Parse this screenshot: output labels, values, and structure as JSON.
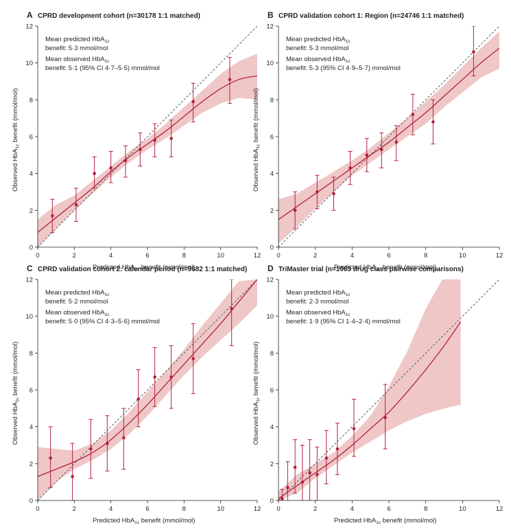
{
  "figure": {
    "x_axis_label_prefix": "Predicted HbA",
    "x_axis_label_sub": "1c",
    "x_axis_label_suffix": " benefit (mmol/mol)",
    "y_axis_label_prefix": "Observed HbA",
    "y_axis_label_sub": "1c",
    "y_axis_label_suffix": " benefit (mmol/mol)",
    "colors": {
      "fit": "#b21f3f",
      "band": "#e9b4b4",
      "reference": "#555b63",
      "axis": "#231f20"
    }
  },
  "chart_data": [
    {
      "type": "scatter",
      "letter": "A",
      "title": "CPRD development cohort (n=30178 1:1 matched)",
      "annotation": {
        "pred_line1_prefix": "Mean predicted HbA",
        "pred_line1_sub": "1c",
        "pred_line2": "benefit: 5·3 mmol/mol",
        "obs_line1_prefix": "Mean observed HbA",
        "obs_line1_sub": "1c",
        "obs_line2": "benefit: 5·1 (95% CI 4·7–5·5) mmol/mol"
      },
      "xlim": [
        0,
        12
      ],
      "ylim": [
        0,
        12
      ],
      "xticks": [
        0,
        2,
        4,
        6,
        8,
        10,
        12
      ],
      "yticks": [
        0,
        2,
        4,
        6,
        8,
        10,
        12
      ],
      "reference_line": [
        [
          0,
          0
        ],
        [
          12,
          12
        ]
      ],
      "points": [
        {
          "x": 0.8,
          "y": 1.7,
          "lo": 0.8,
          "hi": 2.6
        },
        {
          "x": 2.1,
          "y": 2.3,
          "lo": 1.4,
          "hi": 3.2
        },
        {
          "x": 3.1,
          "y": 4.0,
          "lo": 3.2,
          "hi": 4.9
        },
        {
          "x": 4.0,
          "y": 4.3,
          "lo": 3.5,
          "hi": 5.2
        },
        {
          "x": 4.8,
          "y": 4.7,
          "lo": 3.8,
          "hi": 5.5
        },
        {
          "x": 5.6,
          "y": 5.3,
          "lo": 4.4,
          "hi": 6.2
        },
        {
          "x": 6.4,
          "y": 5.8,
          "lo": 4.9,
          "hi": 6.7
        },
        {
          "x": 7.3,
          "y": 5.9,
          "lo": 4.9,
          "hi": 6.9
        },
        {
          "x": 8.5,
          "y": 7.9,
          "lo": 6.8,
          "hi": 8.9
        },
        {
          "x": 10.5,
          "y": 9.1,
          "lo": 7.8,
          "hi": 10.3
        }
      ],
      "fit": [
        [
          0,
          0.8
        ],
        [
          1,
          1.6
        ],
        [
          2,
          2.4
        ],
        [
          3,
          3.2
        ],
        [
          4,
          4.1
        ],
        [
          5,
          4.9
        ],
        [
          6,
          5.6
        ],
        [
          7,
          6.3
        ],
        [
          8,
          7.1
        ],
        [
          9,
          7.9
        ],
        [
          10,
          8.6
        ],
        [
          11,
          9.1
        ],
        [
          12,
          9.3
        ]
      ],
      "band_lower": [
        [
          0,
          0.0
        ],
        [
          1,
          1.0
        ],
        [
          2,
          2.0
        ],
        [
          3,
          2.9
        ],
        [
          4,
          3.8
        ],
        [
          5,
          4.6
        ],
        [
          6,
          5.3
        ],
        [
          7,
          5.9
        ],
        [
          8,
          6.6
        ],
        [
          9,
          7.3
        ],
        [
          10,
          7.8
        ],
        [
          11,
          8.1
        ],
        [
          12,
          8.0
        ]
      ],
      "band_upper": [
        [
          0,
          1.5
        ],
        [
          1,
          2.3
        ],
        [
          2,
          2.8
        ],
        [
          3,
          3.6
        ],
        [
          4,
          4.4
        ],
        [
          5,
          5.2
        ],
        [
          6,
          5.9
        ],
        [
          7,
          6.7
        ],
        [
          8,
          7.6
        ],
        [
          9,
          8.5
        ],
        [
          10,
          9.4
        ],
        [
          11,
          10.1
        ],
        [
          12,
          10.5
        ]
      ]
    },
    {
      "type": "scatter",
      "letter": "B",
      "title": "CPRD validation cohort 1: Region (n=24746 1:1 matched)",
      "annotation": {
        "pred_line1_prefix": "Mean predicted HbA",
        "pred_line1_sub": "1c",
        "pred_line2": "benefit: 5·3 mmol/mol",
        "obs_line1_prefix": "Mean observed HbA",
        "obs_line1_sub": "1c",
        "obs_line2": "benefit: 5·3 (95% CI 4·9–5·7) mmol/mol"
      },
      "xlim": [
        0,
        12
      ],
      "ylim": [
        0,
        12
      ],
      "xticks": [
        0,
        2,
        4,
        6,
        8,
        10,
        12
      ],
      "yticks": [
        0,
        2,
        4,
        6,
        8,
        10,
        12
      ],
      "reference_line": [
        [
          0,
          0
        ],
        [
          12,
          12
        ]
      ],
      "points": [
        {
          "x": 0.9,
          "y": 2.0,
          "lo": 1.0,
          "hi": 3.0
        },
        {
          "x": 2.1,
          "y": 3.0,
          "lo": 2.1,
          "hi": 3.9
        },
        {
          "x": 3.0,
          "y": 2.9,
          "lo": 2.0,
          "hi": 3.8
        },
        {
          "x": 3.9,
          "y": 4.3,
          "lo": 3.4,
          "hi": 5.2
        },
        {
          "x": 4.8,
          "y": 5.0,
          "lo": 4.1,
          "hi": 5.9
        },
        {
          "x": 5.6,
          "y": 5.3,
          "lo": 4.3,
          "hi": 6.2
        },
        {
          "x": 6.4,
          "y": 5.7,
          "lo": 4.7,
          "hi": 6.6
        },
        {
          "x": 7.3,
          "y": 7.2,
          "lo": 6.1,
          "hi": 8.3
        },
        {
          "x": 8.4,
          "y": 6.8,
          "lo": 5.6,
          "hi": 8.0
        },
        {
          "x": 10.6,
          "y": 10.6,
          "lo": 9.3,
          "hi": 12.0
        }
      ],
      "fit": [
        [
          0,
          1.5
        ],
        [
          1,
          2.2
        ],
        [
          2,
          2.9
        ],
        [
          3,
          3.6
        ],
        [
          4,
          4.3
        ],
        [
          5,
          5.0
        ],
        [
          6,
          5.7
        ],
        [
          7,
          6.5
        ],
        [
          8,
          7.3
        ],
        [
          9,
          8.2
        ],
        [
          10,
          9.1
        ],
        [
          11,
          10.0
        ],
        [
          12,
          10.8
        ]
      ],
      "band_lower": [
        [
          0,
          0.2
        ],
        [
          1,
          1.1
        ],
        [
          2,
          2.1
        ],
        [
          3,
          3.0
        ],
        [
          4,
          3.9
        ],
        [
          5,
          4.6
        ],
        [
          6,
          5.3
        ],
        [
          7,
          6.0
        ],
        [
          8,
          6.7
        ],
        [
          9,
          7.6
        ],
        [
          10,
          8.4
        ],
        [
          11,
          9.2
        ],
        [
          12,
          9.7
        ]
      ],
      "band_upper": [
        [
          0,
          2.6
        ],
        [
          1,
          2.9
        ],
        [
          2,
          3.5
        ],
        [
          3,
          4.1
        ],
        [
          4,
          4.7
        ],
        [
          5,
          5.4
        ],
        [
          6,
          6.2
        ],
        [
          7,
          7.0
        ],
        [
          8,
          7.9
        ],
        [
          9,
          8.8
        ],
        [
          10,
          9.8
        ],
        [
          11,
          10.8
        ],
        [
          12,
          11.7
        ]
      ]
    },
    {
      "type": "scatter",
      "letter": "C",
      "title": "CPRD validation cohort 2: calendar period (n=9682 1:1 matched)",
      "annotation": {
        "pred_line1_prefix": "Mean predicted HbA",
        "pred_line1_sub": "1c",
        "pred_line2": "benefit: 5·2 mmol/mol",
        "obs_line1_prefix": "Mean observed HbA",
        "obs_line1_sub": "1c",
        "obs_line2": "benefit: 5·0 (95% CI 4·3–5·6) mmol/mol"
      },
      "xlim": [
        0,
        12
      ],
      "ylim": [
        0,
        12
      ],
      "xticks": [
        0,
        2,
        4,
        6,
        8,
        10,
        12
      ],
      "yticks": [
        0,
        2,
        4,
        6,
        8,
        10,
        12
      ],
      "reference_line": [
        [
          0,
          0
        ],
        [
          12,
          12
        ]
      ],
      "points": [
        {
          "x": 0.7,
          "y": 2.3,
          "lo": 0.7,
          "hi": 4.0
        },
        {
          "x": 1.9,
          "y": 1.3,
          "lo": 0.0,
          "hi": 3.1
        },
        {
          "x": 2.9,
          "y": 2.8,
          "lo": 1.2,
          "hi": 4.4
        },
        {
          "x": 3.8,
          "y": 3.1,
          "lo": 1.6,
          "hi": 4.6
        },
        {
          "x": 4.7,
          "y": 3.4,
          "lo": 1.7,
          "hi": 5.0
        },
        {
          "x": 5.5,
          "y": 5.5,
          "lo": 4.0,
          "hi": 7.1
        },
        {
          "x": 6.4,
          "y": 6.7,
          "lo": 5.1,
          "hi": 8.3
        },
        {
          "x": 7.3,
          "y": 6.7,
          "lo": 5.0,
          "hi": 8.4
        },
        {
          "x": 8.5,
          "y": 7.7,
          "lo": 5.8,
          "hi": 9.6
        },
        {
          "x": 10.6,
          "y": 10.4,
          "lo": 8.4,
          "hi": 12.0
        }
      ],
      "fit": [
        [
          0,
          1.3
        ],
        [
          1,
          1.7
        ],
        [
          2,
          2.1
        ],
        [
          3,
          2.6
        ],
        [
          4,
          3.3
        ],
        [
          5,
          4.2
        ],
        [
          6,
          5.2
        ],
        [
          7,
          6.3
        ],
        [
          8,
          7.4
        ],
        [
          9,
          8.5
        ],
        [
          10,
          9.6
        ],
        [
          11,
          10.8
        ],
        [
          12,
          12.0
        ]
      ],
      "band_lower": [
        [
          0,
          0.0
        ],
        [
          1,
          1.0
        ],
        [
          2,
          1.7
        ],
        [
          3,
          2.2
        ],
        [
          4,
          2.8
        ],
        [
          5,
          3.6
        ],
        [
          6,
          4.6
        ],
        [
          7,
          5.7
        ],
        [
          8,
          6.8
        ],
        [
          9,
          7.8
        ],
        [
          10,
          8.7
        ],
        [
          11,
          9.6
        ],
        [
          12,
          10.6
        ]
      ],
      "band_upper": [
        [
          0,
          2.9
        ],
        [
          1,
          2.8
        ],
        [
          2,
          2.7
        ],
        [
          3,
          3.1
        ],
        [
          4,
          3.8
        ],
        [
          5,
          4.8
        ],
        [
          6,
          5.9
        ],
        [
          7,
          7.0
        ],
        [
          8,
          8.2
        ],
        [
          9,
          9.5
        ],
        [
          10,
          10.7
        ],
        [
          11,
          11.9
        ],
        [
          12,
          12.0
        ]
      ]
    },
    {
      "type": "scatter",
      "letter": "D",
      "title": "TriMaster trial (n=1063 drug class pairwise comparisons)",
      "annotation": {
        "pred_line1_prefix": "Mean predicted HbA",
        "pred_line1_sub": "1c",
        "pred_line2": "benefit: 2·3 mmol/mol",
        "obs_line1_prefix": "Mean observed HbA",
        "obs_line1_sub": "1c",
        "obs_line2": "benefit: 1·9 (95% CI 1·4–2·4) mmol/mol"
      },
      "xlim": [
        0,
        12
      ],
      "ylim": [
        0,
        12
      ],
      "xticks": [
        0,
        2,
        4,
        6,
        8,
        10,
        12
      ],
      "yticks": [
        0,
        2,
        4,
        6,
        8,
        10,
        12
      ],
      "reference_line": [
        [
          0,
          0
        ],
        [
          12,
          12
        ]
      ],
      "points": [
        {
          "x": 0.2,
          "y": 0.1,
          "lo": 0.0,
          "hi": 0.6
        },
        {
          "x": 0.5,
          "y": 0.7,
          "lo": 0.0,
          "hi": 2.1
        },
        {
          "x": 0.9,
          "y": 1.8,
          "lo": 0.4,
          "hi": 3.3
        },
        {
          "x": 1.3,
          "y": 1.0,
          "lo": 0.0,
          "hi": 3.0
        },
        {
          "x": 1.7,
          "y": 1.5,
          "lo": 0.0,
          "hi": 3.3
        },
        {
          "x": 2.1,
          "y": 1.4,
          "lo": 0.0,
          "hi": 2.9
        },
        {
          "x": 2.6,
          "y": 2.3,
          "lo": 0.9,
          "hi": 3.8
        },
        {
          "x": 3.2,
          "y": 2.8,
          "lo": 1.4,
          "hi": 4.2
        },
        {
          "x": 4.1,
          "y": 3.9,
          "lo": 2.4,
          "hi": 5.5
        },
        {
          "x": 5.8,
          "y": 4.5,
          "lo": 2.8,
          "hi": 6.3
        }
      ],
      "fit": [
        [
          0,
          0.1
        ],
        [
          1,
          0.8
        ],
        [
          2,
          1.5
        ],
        [
          3,
          2.2
        ],
        [
          4,
          3.0
        ],
        [
          5,
          3.9
        ],
        [
          6,
          4.8
        ],
        [
          7,
          5.9
        ],
        [
          8,
          7.1
        ],
        [
          9,
          8.4
        ],
        [
          9.9,
          9.7
        ]
      ],
      "band_lower": [
        [
          0,
          0.0
        ],
        [
          1,
          0.4
        ],
        [
          2,
          1.2
        ],
        [
          3,
          1.9
        ],
        [
          4,
          2.6
        ],
        [
          5,
          3.2
        ],
        [
          6,
          3.8
        ],
        [
          7,
          4.3
        ],
        [
          8,
          4.7
        ],
        [
          9,
          5.0
        ],
        [
          9.9,
          5.2
        ]
      ],
      "band_upper": [
        [
          0,
          0.5
        ],
        [
          1,
          1.4
        ],
        [
          2,
          2.0
        ],
        [
          3,
          2.6
        ],
        [
          4,
          3.5
        ],
        [
          5,
          4.6
        ],
        [
          6,
          6.2
        ],
        [
          7,
          8.1
        ],
        [
          8,
          10.4
        ],
        [
          8.9,
          12.0
        ],
        [
          9.9,
          12.0
        ]
      ]
    }
  ]
}
